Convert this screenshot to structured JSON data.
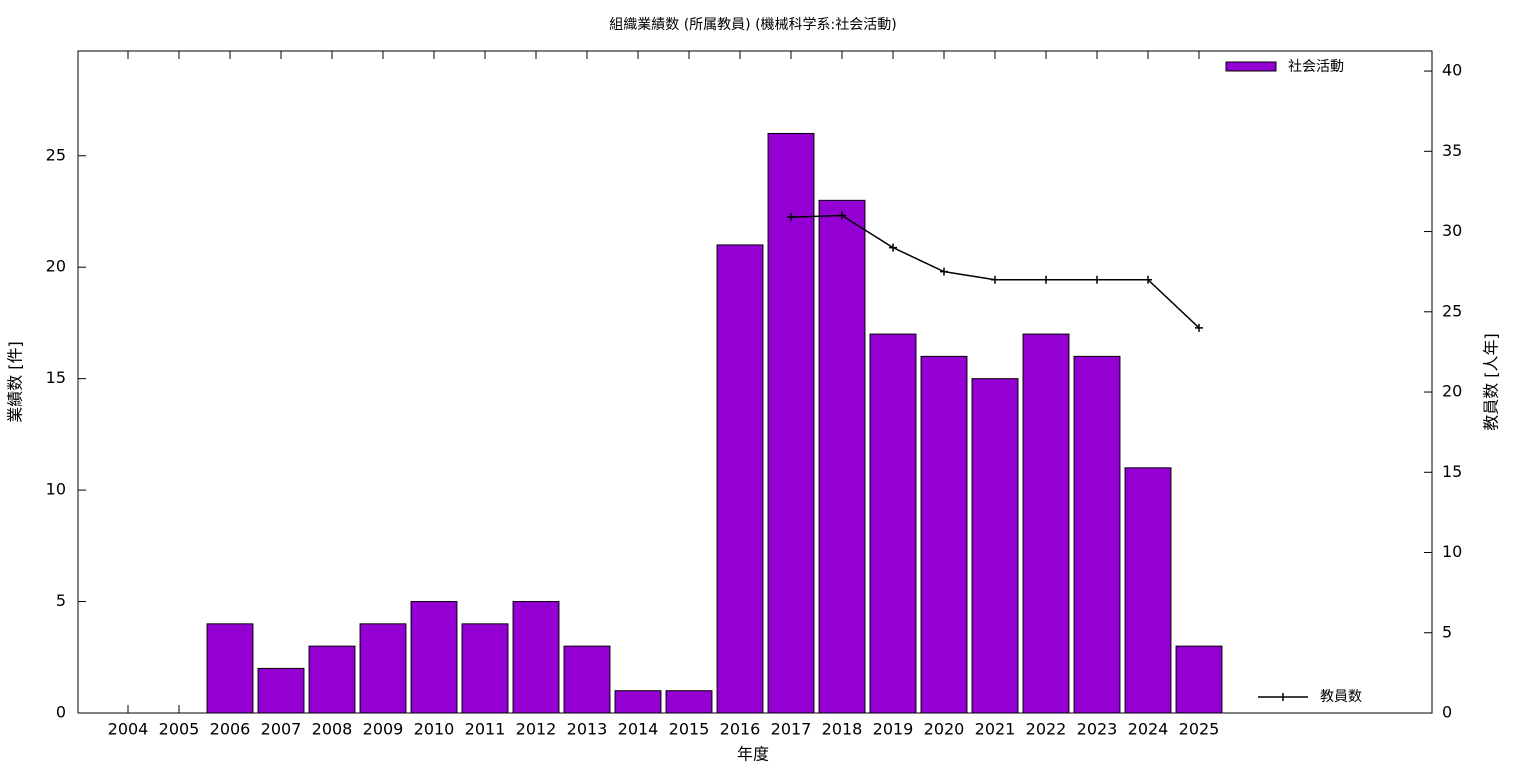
{
  "chart_data": {
    "type": "bar",
    "title": "組織業績数 (所属教員) (機械科学系:社会活動)",
    "x_label": "年度",
    "y_label": "業績数 [件]",
    "y2_label": "教員数 [人年]",
    "categories": [
      "2004",
      "2005",
      "2006",
      "2007",
      "2008",
      "2009",
      "2010",
      "2011",
      "2012",
      "2013",
      "2014",
      "2015",
      "2016",
      "2017",
      "2018",
      "2019",
      "2020",
      "2021",
      "2022",
      "2023",
      "2024",
      "2025"
    ],
    "series": [
      {
        "name": "社会活動",
        "type": "bar",
        "color": "#9400d3",
        "values": [
          0,
          0,
          4,
          2,
          3,
          4,
          5,
          4,
          5,
          3,
          1,
          1,
          21,
          26,
          23,
          17,
          16,
          15,
          17,
          16,
          11,
          3
        ]
      },
      {
        "name": "教員数",
        "type": "line",
        "color": "#000000",
        "axis": "y2",
        "values": [
          null,
          null,
          null,
          null,
          null,
          null,
          null,
          null,
          null,
          null,
          null,
          null,
          null,
          30.9,
          31,
          29,
          27.5,
          27,
          27,
          27,
          27,
          24
        ]
      }
    ],
    "ylim": [
      0,
      29.7
    ],
    "yticks": [
      0,
      5,
      10,
      15,
      20,
      25
    ],
    "y2lim": [
      0,
      41.25
    ],
    "y2ticks": [
      0,
      5,
      10,
      15,
      20,
      25,
      30,
      35,
      40
    ],
    "grid": false
  }
}
